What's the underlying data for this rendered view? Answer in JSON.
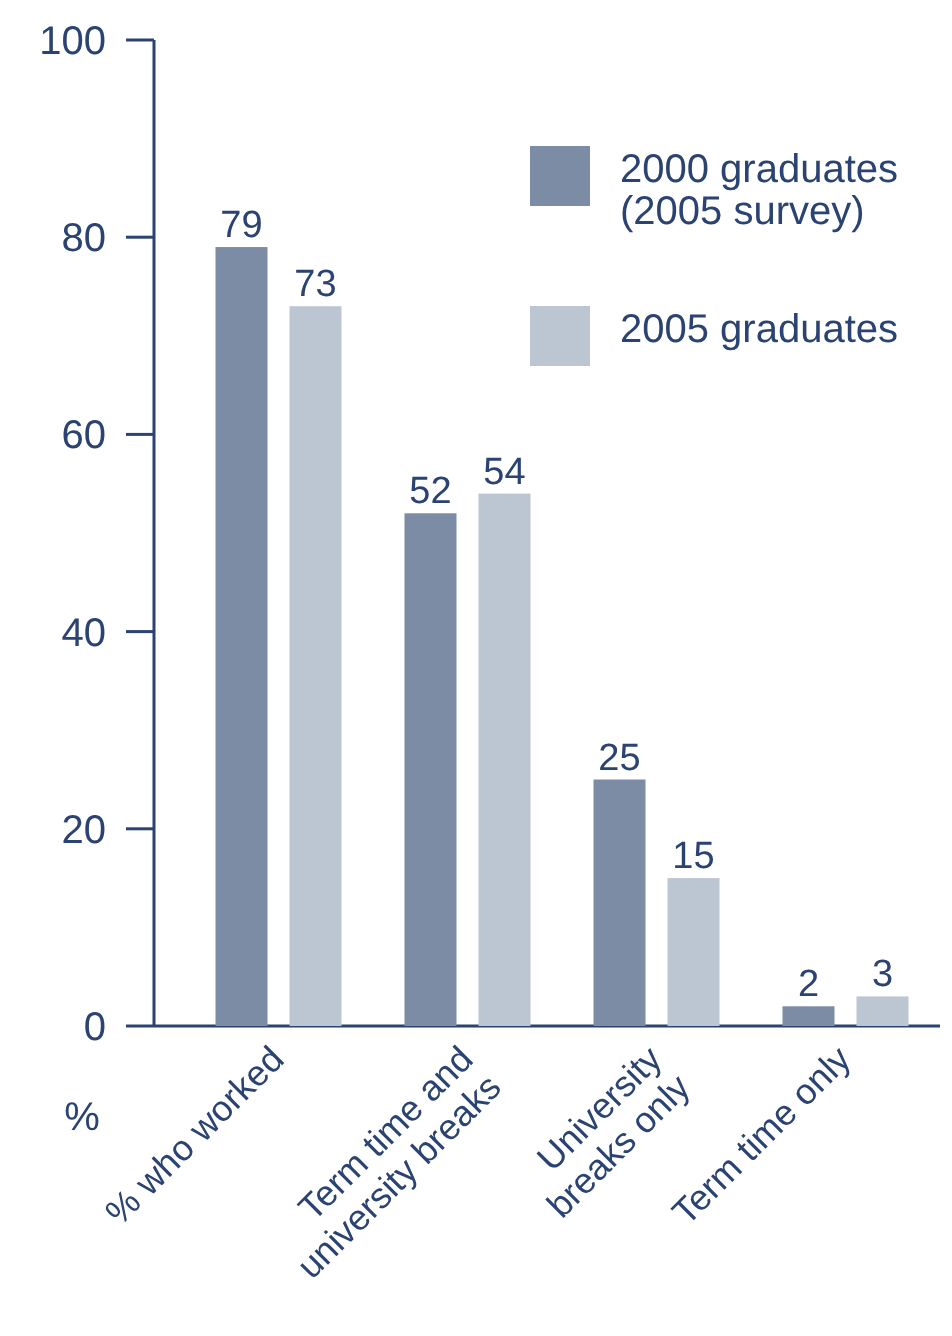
{
  "chart_data": {
    "type": "bar",
    "ylabel": "%",
    "categories": [
      "% who worked",
      "Term time and\nuniversity breaks",
      "University\nbreaks only",
      "Term time only"
    ],
    "series": [
      {
        "name": "2000 graduates\n(2005 survey)",
        "color": "#7d8ca5",
        "values": [
          79,
          52,
          25,
          2
        ]
      },
      {
        "name": "2005 graduates",
        "color": "#bcc6d3",
        "values": [
          73,
          54,
          15,
          3
        ]
      }
    ],
    "ylim": [
      0,
      100
    ],
    "yticks": [
      0,
      20,
      40,
      60,
      80,
      100
    ],
    "data_labels": true,
    "legend": "top right"
  }
}
